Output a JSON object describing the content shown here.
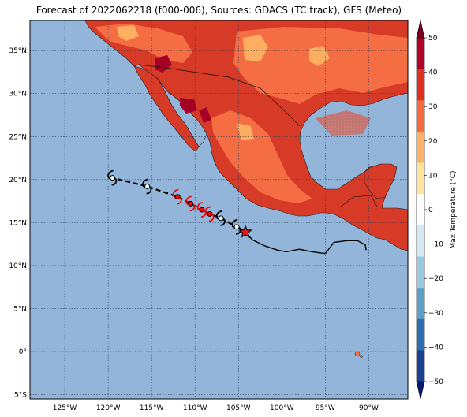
{
  "title": "Forecast of 2022062218 (f000-006), Sources: GDACS (TC track), GFS (Meteo)",
  "map": {
    "ocean_color": "#93b5d9",
    "lat_ticks": [
      "35°N",
      "30°N",
      "25°N",
      "20°N",
      "15°N",
      "10°N",
      "5°N",
      "0°",
      "5°S"
    ],
    "lat_values": [
      35,
      30,
      25,
      20,
      15,
      10,
      5,
      0,
      -5
    ],
    "lon_ticks": [
      "125°W",
      "120°W",
      "115°W",
      "110°W",
      "105°W",
      "100°W",
      "95°W",
      "90°W"
    ],
    "lon_values": [
      -125,
      -120,
      -115,
      -110,
      -105,
      -100,
      -95,
      -90
    ],
    "extent": {
      "lon_min": -129,
      "lon_max": -85.5,
      "lat_min": -5.5,
      "lat_max": 38.5
    }
  },
  "colorbar": {
    "label": "Max Temperature (°C)",
    "ticks": [
      "50",
      "40",
      "30",
      "20",
      "10",
      "0",
      "−10",
      "−20",
      "−30",
      "−40",
      "−50"
    ],
    "colors": [
      "#7f0026",
      "#b30026",
      "#e02e1f",
      "#f8683e",
      "#feb164",
      "#ffe59c",
      "#ffffff",
      "#d3e9f2",
      "#9ac8e0",
      "#5e9fc9",
      "#2c6fb0",
      "#1a3f93",
      "#0d1a6e"
    ]
  },
  "track": {
    "past": [
      [
        -103.4,
        13.0
      ],
      [
        -102,
        12.3
      ],
      [
        -100.5,
        11.8
      ],
      [
        -99.5,
        11.6
      ],
      [
        -98,
        11.9
      ],
      [
        -96.5,
        11.6
      ],
      [
        -95,
        11.4
      ],
      [
        -94,
        12.7
      ],
      [
        -92.5,
        12.9
      ],
      [
        -91.3,
        12.9
      ],
      [
        -90.4,
        12.4
      ],
      [
        -90.3,
        11.8
      ]
    ],
    "current_position": [
      -104.2,
      13.9
    ],
    "forecast": [
      {
        "lon": -105.2,
        "lat": 14.5,
        "color": "#ffffff"
      },
      {
        "lon": -107,
        "lat": 15.5,
        "color": "#ffffff"
      },
      {
        "lon": -108.3,
        "lat": 16.0,
        "color": "#ff0000"
      },
      {
        "lon": -109.2,
        "lat": 16.5,
        "color": "#ff0000"
      },
      {
        "lon": -110.5,
        "lat": 17.2,
        "color": "#ff0000"
      },
      {
        "lon": -112,
        "lat": 18.0,
        "color": "#ff0000"
      },
      {
        "lon": -115.5,
        "lat": 19.2,
        "color": "#ffffff"
      },
      {
        "lon": -119.5,
        "lat": 20.2,
        "color": "#ffffff"
      }
    ]
  }
}
